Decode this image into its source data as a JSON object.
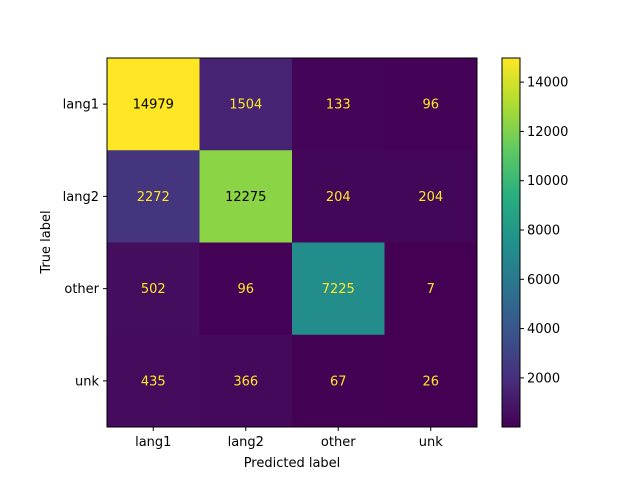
{
  "chart_data": {
    "type": "heatmap",
    "title": "",
    "xlabel": "Predicted label",
    "ylabel": "True label",
    "x_categories": [
      "lang1",
      "lang2",
      "other",
      "unk"
    ],
    "y_categories": [
      "lang1",
      "lang2",
      "other",
      "unk"
    ],
    "values": [
      [
        14979,
        1504,
        133,
        96
      ],
      [
        2272,
        12275,
        204,
        204
      ],
      [
        502,
        96,
        7225,
        7
      ],
      [
        435,
        366,
        67,
        26
      ]
    ],
    "colormap": "viridis",
    "colorbar": {
      "range": [
        7,
        14979
      ],
      "ticks": [
        2000,
        4000,
        6000,
        8000,
        10000,
        12000,
        14000
      ]
    },
    "grid": false
  }
}
